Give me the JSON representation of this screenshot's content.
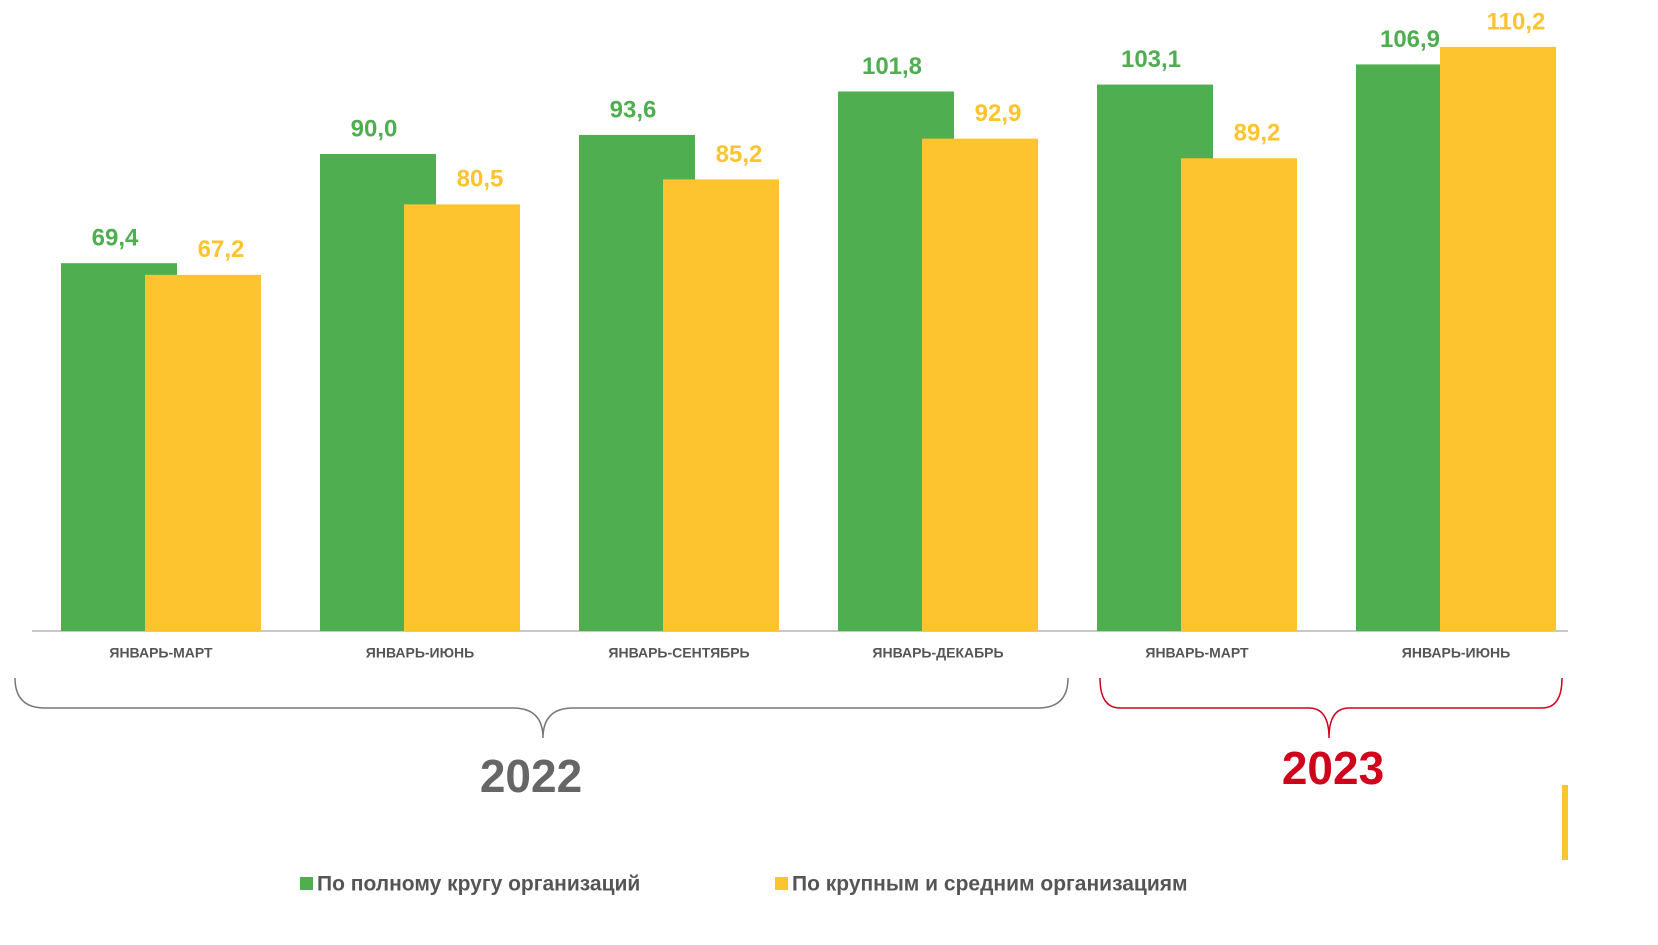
{
  "chart_data": {
    "type": "bar",
    "categories": [
      "ЯНВАРЬ-МАРТ",
      "ЯНВАРЬ-ИЮНЬ",
      "ЯНВАРЬ-СЕНТЯБРЬ",
      "ЯНВАРЬ-ДЕКАБРЬ",
      "ЯНВАРЬ-МАРТ",
      "ЯНВАРЬ-ИЮНЬ"
    ],
    "series": [
      {
        "name": "По полному кругу организаций",
        "color": "#4fae4f",
        "values": [
          69.4,
          90.0,
          93.6,
          101.8,
          103.1,
          106.9
        ],
        "value_labels": [
          "69,4",
          "90,0",
          "93,6",
          "101,8",
          "103,1",
          "106,9"
        ]
      },
      {
        "name": "По крупным и средним организациям",
        "color": "#fec42f",
        "values": [
          67.2,
          80.5,
          85.2,
          92.9,
          89.2,
          110.2
        ],
        "value_labels": [
          "67,2",
          "80,5",
          "85,2",
          "92,9",
          "89,2",
          "110,2"
        ]
      }
    ],
    "groups": [
      {
        "label": "2022",
        "color": "#666666"
      },
      {
        "label": "2023",
        "color": "#d0021b"
      }
    ],
    "legend": "bottom"
  }
}
